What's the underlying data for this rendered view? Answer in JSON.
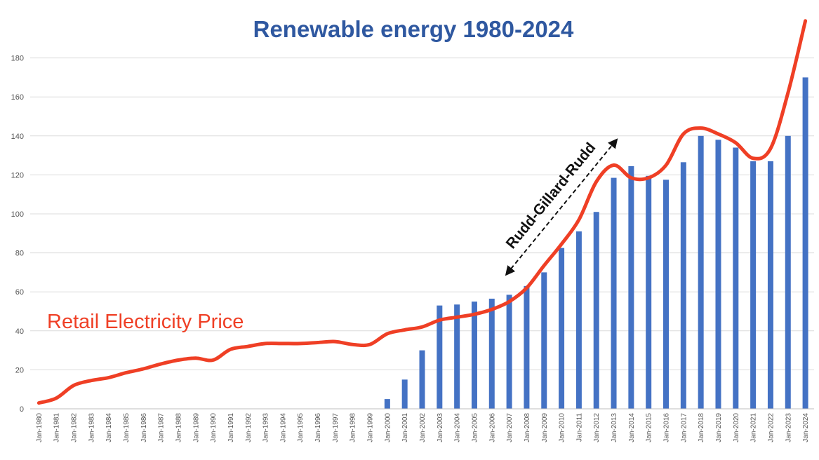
{
  "chart_data": {
    "type": "bar",
    "title": "Renewable energy 1980-2024",
    "xlabel": "",
    "ylabel": "",
    "ylim": [
      0,
      200
    ],
    "yticks": [
      0,
      20,
      40,
      60,
      80,
      100,
      120,
      140,
      160,
      180
    ],
    "grid": true,
    "categories": [
      "Jan-1980",
      "Jan-1981",
      "Jan-1982",
      "Jan-1983",
      "Jan-1984",
      "Jan-1985",
      "Jan-1986",
      "Jan-1987",
      "Jan-1988",
      "Jan-1989",
      "Jan-1990",
      "Jan-1991",
      "Jan-1992",
      "Jan-1993",
      "Jan-1994",
      "Jan-1995",
      "Jan-1996",
      "Jan-1997",
      "Jan-1998",
      "Jan-1999",
      "Jan-2000",
      "Jan-2001",
      "Jan-2002",
      "Jan-2003",
      "Jan-2004",
      "Jan-2005",
      "Jan-2006",
      "Jan-2007",
      "Jan-2008",
      "Jan-2009",
      "Jan-2010",
      "Jan-2011",
      "Jan-2012",
      "Jan-2013",
      "Jan-2014",
      "Jan-2015",
      "Jan-2016",
      "Jan-2017",
      "Jan-2018",
      "Jan-2019",
      "Jan-2020",
      "Jan-2021",
      "Jan-2022",
      "Jan-2023",
      "Jan-2024"
    ],
    "series": [
      {
        "kind": "bar",
        "color": "#4472c4",
        "values": [
          0,
          0,
          0,
          0,
          0,
          0,
          0,
          0,
          0,
          0,
          0,
          0,
          0,
          0,
          0,
          0,
          0,
          0,
          0,
          0,
          5,
          15,
          30,
          53,
          53.5,
          55,
          56.5,
          58.5,
          63,
          70,
          82.5,
          91,
          101,
          118.5,
          124.5,
          119.5,
          117.5,
          126.5,
          140,
          138,
          134,
          127,
          127,
          140,
          170
        ]
      },
      {
        "name": "Retail Electricity Price",
        "kind": "line",
        "color": "#ef3f25",
        "values": [
          3,
          5.5,
          12,
          14.5,
          16,
          18.5,
          20.5,
          23,
          25,
          26,
          25,
          30.5,
          32,
          33.5,
          33.5,
          33.5,
          34,
          34.5,
          33,
          33,
          38.5,
          40.5,
          42,
          45.5,
          47,
          48.5,
          51,
          55,
          62,
          73.5,
          84.5,
          97,
          116.5,
          125,
          118.5,
          118.5,
          125,
          141,
          144,
          141,
          136.5,
          128.5,
          133.5,
          162,
          199
        ]
      }
    ],
    "annotations": [
      {
        "text": "Rudd-Gillard-Rudd",
        "style": "double-headed dashed arrow",
        "from": {
          "x": "Jan-2007",
          "y": 69
        },
        "to": {
          "x": "Jan-2013",
          "y": 138
        }
      }
    ]
  }
}
